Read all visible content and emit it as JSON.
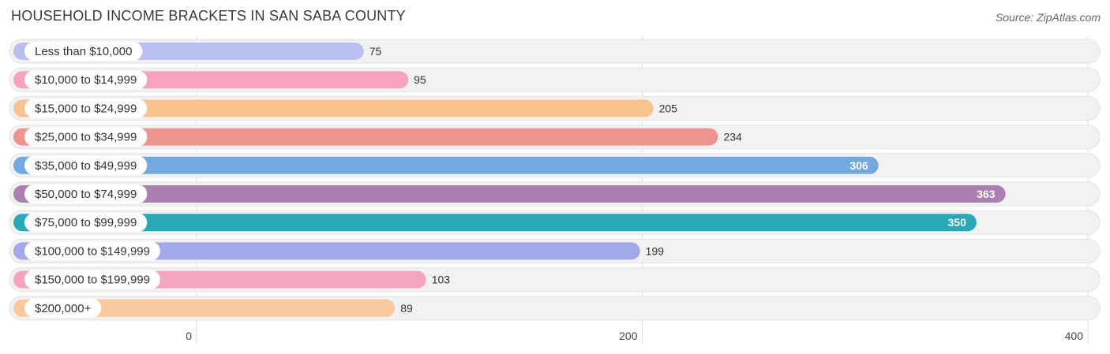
{
  "chart_data": {
    "type": "bar",
    "orientation": "horizontal",
    "title": "HOUSEHOLD INCOME BRACKETS IN SAN SABA COUNTY",
    "source": "Source: ZipAtlas.com",
    "xlabel": "",
    "ylabel": "",
    "xlim": [
      0,
      400
    ],
    "ticks": [
      0,
      200,
      400
    ],
    "grid": true,
    "categories": [
      "Less than $10,000",
      "$10,000 to $14,999",
      "$15,000 to $24,999",
      "$25,000 to $34,999",
      "$35,000 to $49,999",
      "$50,000 to $74,999",
      "$75,000 to $99,999",
      "$100,000 to $149,999",
      "$150,000 to $199,999",
      "$200,000+"
    ],
    "values": [
      75,
      95,
      205,
      234,
      306,
      363,
      350,
      199,
      103,
      89
    ],
    "colors": [
      "#b9bfee",
      "#f7a3c0",
      "#f9c28f",
      "#ee9490",
      "#74a9e0",
      "#a97fb4",
      "#2aa8b7",
      "#a3a9e8",
      "#f5a3c1",
      "#f9c89c"
    ]
  }
}
